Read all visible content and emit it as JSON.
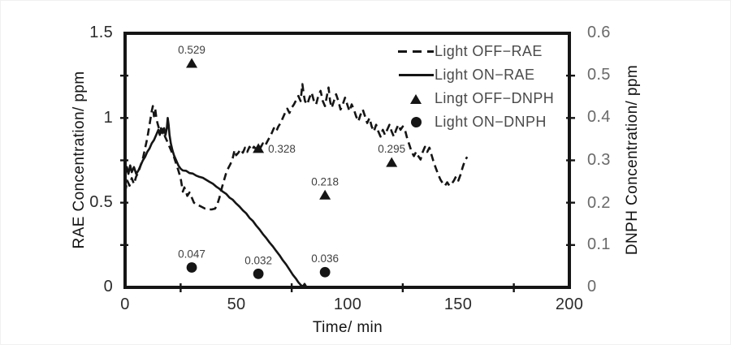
{
  "figure": {
    "x_axis": {
      "title": "Time/ min",
      "tick_labels": [
        "0",
        "50",
        "100",
        "150",
        "200"
      ],
      "tick_values": [
        0,
        50,
        100,
        150,
        200
      ],
      "minor_ticks": [
        25,
        75,
        125,
        175
      ],
      "range": [
        0,
        200
      ]
    },
    "left_axis": {
      "title": "RAE Concentration/ ppm",
      "tick_labels": [
        "1.5",
        "1",
        "0.5",
        "0"
      ],
      "tick_values": [
        1.5,
        1,
        0.5,
        0
      ],
      "minor_ticks": [
        0.25,
        0.5,
        0.75,
        1,
        1.25
      ],
      "range": [
        0,
        1.5
      ]
    },
    "right_axis": {
      "title": "DNPH Concentration/ ppm",
      "tick_labels": [
        "0.6",
        "0.5",
        "0.4",
        "0.3",
        "0.2",
        "0.1",
        "0"
      ],
      "tick_values": [
        0.6,
        0.5,
        0.4,
        0.3,
        0.2,
        0.1,
        0
      ],
      "minor_ticks": [
        0.1,
        0.2,
        0.3,
        0.4,
        0.5
      ],
      "range": [
        0,
        0.6
      ]
    },
    "colors": {
      "line": "#151515",
      "marker": "#151515",
      "point_label": "#404040",
      "tick_label_left": "#2b2b2b",
      "tick_label_right": "#6a6a6a"
    }
  },
  "chart_data": {
    "type": "line",
    "title": "",
    "xlabel": "Time/ min",
    "ylabel_left": "RAE Concentration/ ppm",
    "ylabel_right": "DNPH Concentration/ ppm",
    "x_range": [
      0,
      200
    ],
    "y_left_range": [
      0,
      1.5
    ],
    "y_right_range": [
      0,
      0.6
    ],
    "grid": false,
    "legend_position": "top-right-inside",
    "series": [
      {
        "name": "Light OFF−RAE",
        "type": "line",
        "line_style": "dashed",
        "axis": "left",
        "points": [
          [
            0,
            0.56
          ],
          [
            1,
            0.63
          ],
          [
            2,
            0.6
          ],
          [
            3,
            0.645
          ],
          [
            4,
            0.61
          ],
          [
            5,
            0.655
          ],
          [
            6,
            0.68
          ],
          [
            7,
            0.72
          ],
          [
            8,
            0.76
          ],
          [
            9,
            0.82
          ],
          [
            10,
            0.88
          ],
          [
            11,
            0.96
          ],
          [
            12,
            1.04
          ],
          [
            12.5,
            1.07
          ],
          [
            13,
            1.01
          ],
          [
            13.6,
            1.05
          ],
          [
            14.2,
            0.99
          ],
          [
            15,
            0.95
          ],
          [
            16,
            0.91
          ],
          [
            17,
            0.935
          ],
          [
            18,
            0.89
          ],
          [
            19,
            0.86
          ],
          [
            20,
            0.83
          ],
          [
            21,
            0.8
          ],
          [
            22,
            0.77
          ],
          [
            23,
            0.73
          ],
          [
            24,
            0.69
          ],
          [
            25,
            0.645
          ],
          [
            26,
            0.565
          ],
          [
            26.7,
            0.59
          ],
          [
            27.4,
            0.565
          ],
          [
            28,
            0.54
          ],
          [
            29,
            0.56
          ],
          [
            30,
            0.53
          ],
          [
            31,
            0.5
          ],
          [
            32,
            0.49
          ],
          [
            33,
            0.485
          ],
          [
            34.5,
            0.475
          ],
          [
            36,
            0.465
          ],
          [
            37.5,
            0.46
          ],
          [
            39,
            0.46
          ],
          [
            40.5,
            0.465
          ],
          [
            41.5,
            0.49
          ],
          [
            42.5,
            0.53
          ],
          [
            43.5,
            0.585
          ],
          [
            44.5,
            0.63
          ],
          [
            45.5,
            0.675
          ],
          [
            46.5,
            0.705
          ],
          [
            47.5,
            0.73
          ],
          [
            48.5,
            0.765
          ],
          [
            49.3,
            0.81
          ],
          [
            50,
            0.78
          ],
          [
            51,
            0.795
          ],
          [
            52,
            0.815
          ],
          [
            53,
            0.795
          ],
          [
            54,
            0.825
          ],
          [
            55,
            0.8
          ],
          [
            56,
            0.83
          ],
          [
            57,
            0.81
          ],
          [
            58,
            0.83
          ],
          [
            59,
            0.815
          ],
          [
            60,
            0.84
          ],
          [
            61,
            0.825
          ],
          [
            62,
            0.85
          ],
          [
            63,
            0.835
          ],
          [
            64,
            0.86
          ],
          [
            65,
            0.885
          ],
          [
            66,
            0.91
          ],
          [
            67,
            0.94
          ],
          [
            68,
            0.92
          ],
          [
            69,
            0.95
          ],
          [
            70,
            0.97
          ],
          [
            71,
            1.0
          ],
          [
            72,
            1.03
          ],
          [
            73,
            1.055
          ],
          [
            74,
            1.03
          ],
          [
            75,
            1.06
          ],
          [
            76,
            1.08
          ],
          [
            77,
            1.105
          ],
          [
            78,
            1.13
          ],
          [
            79,
            1.1
          ],
          [
            79.8,
            1.2
          ],
          [
            80.4,
            1.14
          ],
          [
            81,
            1.1
          ],
          [
            82,
            1.08
          ],
          [
            83,
            1.12
          ],
          [
            84,
            1.15
          ],
          [
            85,
            1.1
          ],
          [
            86,
            1.08
          ],
          [
            87,
            1.13
          ],
          [
            88,
            1.16
          ],
          [
            89,
            1.1
          ],
          [
            90,
            1.07
          ],
          [
            91,
            1.14
          ],
          [
            91.6,
            1.18
          ],
          [
            92.3,
            1.1
          ],
          [
            93,
            1.06
          ],
          [
            94,
            1.1
          ],
          [
            95,
            1.14
          ],
          [
            96,
            1.1
          ],
          [
            97,
            1.05
          ],
          [
            98,
            1.08
          ],
          [
            99,
            1.12
          ],
          [
            100,
            1.08
          ],
          [
            101,
            1.04
          ],
          [
            102,
            1.08
          ],
          [
            103,
            1.05
          ],
          [
            104,
            1.01
          ],
          [
            105,
            0.98
          ],
          [
            106,
            1.02
          ],
          [
            107,
            1.05
          ],
          [
            108,
            1.01
          ],
          [
            109,
            0.97
          ],
          [
            110,
            1.0
          ],
          [
            111,
            0.95
          ],
          [
            112,
            0.92
          ],
          [
            113,
            0.96
          ],
          [
            114,
            0.92
          ],
          [
            115,
            0.89
          ],
          [
            116,
            0.93
          ],
          [
            117,
            0.9
          ],
          [
            118,
            0.93
          ],
          [
            119,
            0.96
          ],
          [
            120,
            0.92
          ],
          [
            121,
            0.89
          ],
          [
            122,
            0.93
          ],
          [
            123,
            0.96
          ],
          [
            124,
            0.93
          ],
          [
            125,
            0.95
          ],
          [
            126,
            0.93
          ],
          [
            127,
            0.88
          ],
          [
            128,
            0.84
          ],
          [
            129,
            0.8
          ],
          [
            130,
            0.775
          ],
          [
            131,
            0.8
          ],
          [
            132,
            0.775
          ],
          [
            133,
            0.755
          ],
          [
            134,
            0.8
          ],
          [
            135,
            0.83
          ],
          [
            136,
            0.8
          ],
          [
            137,
            0.825
          ],
          [
            138,
            0.78
          ],
          [
            139,
            0.735
          ],
          [
            140,
            0.7
          ],
          [
            141,
            0.665
          ],
          [
            142,
            0.635
          ],
          [
            143,
            0.615
          ],
          [
            144,
            0.6
          ],
          [
            145,
            0.62
          ],
          [
            146,
            0.6
          ],
          [
            147,
            0.61
          ],
          [
            148,
            0.63
          ],
          [
            149,
            0.655
          ],
          [
            150,
            0.63
          ],
          [
            151,
            0.665
          ],
          [
            152,
            0.71
          ],
          [
            153,
            0.75
          ],
          [
            154,
            0.77
          ]
        ]
      },
      {
        "name": "Light ON−RAE",
        "type": "line",
        "line_style": "solid",
        "axis": "left",
        "points": [
          [
            0,
            0.66
          ],
          [
            0.8,
            0.71
          ],
          [
            1.5,
            0.67
          ],
          [
            2.3,
            0.72
          ],
          [
            3,
            0.68
          ],
          [
            4,
            0.71
          ],
          [
            5,
            0.67
          ],
          [
            6,
            0.69
          ],
          [
            7,
            0.72
          ],
          [
            8,
            0.75
          ],
          [
            9,
            0.77
          ],
          [
            10,
            0.8
          ],
          [
            11,
            0.82
          ],
          [
            12,
            0.85
          ],
          [
            13,
            0.87
          ],
          [
            14,
            0.9
          ],
          [
            15,
            0.93
          ],
          [
            15.6,
            0.9
          ],
          [
            16.2,
            0.94
          ],
          [
            17,
            0.91
          ],
          [
            17.6,
            0.94
          ],
          [
            18.2,
            0.9
          ],
          [
            18.8,
            0.94
          ],
          [
            19.2,
            1.0
          ],
          [
            19.6,
            0.96
          ],
          [
            20,
            0.9
          ],
          [
            20.6,
            0.85
          ],
          [
            21.3,
            0.81
          ],
          [
            22,
            0.78
          ],
          [
            23,
            0.75
          ],
          [
            24,
            0.72
          ],
          [
            25,
            0.7
          ],
          [
            26,
            0.69
          ],
          [
            27.5,
            0.688
          ],
          [
            29,
            0.675
          ],
          [
            30.5,
            0.672
          ],
          [
            32,
            0.66
          ],
          [
            33.5,
            0.652
          ],
          [
            35,
            0.647
          ],
          [
            36.5,
            0.635
          ],
          [
            38,
            0.623
          ],
          [
            39.5,
            0.612
          ],
          [
            41,
            0.595
          ],
          [
            42.5,
            0.582
          ],
          [
            44,
            0.565
          ],
          [
            45.5,
            0.552
          ],
          [
            47,
            0.53
          ],
          [
            48.5,
            0.517
          ],
          [
            50,
            0.495
          ],
          [
            51.5,
            0.477
          ],
          [
            53,
            0.455
          ],
          [
            54.5,
            0.437
          ],
          [
            56,
            0.41
          ],
          [
            57.5,
            0.392
          ],
          [
            59,
            0.365
          ],
          [
            60.5,
            0.342
          ],
          [
            62,
            0.315
          ],
          [
            63.5,
            0.292
          ],
          [
            65,
            0.265
          ],
          [
            66.5,
            0.242
          ],
          [
            68,
            0.215
          ],
          [
            69.5,
            0.19
          ],
          [
            71,
            0.16
          ],
          [
            72.5,
            0.135
          ],
          [
            74,
            0.105
          ],
          [
            75.5,
            0.075
          ],
          [
            77,
            0.05
          ],
          [
            78,
            0.03
          ],
          [
            79,
            0.015
          ],
          [
            80,
            0.005
          ],
          [
            80.8,
            0.02
          ],
          [
            81.5,
            0.005
          ],
          [
            82.3,
            0
          ]
        ]
      },
      {
        "name": "Lingt OFF−DNPH",
        "type": "scatter",
        "marker": "triangle",
        "axis": "right",
        "points": [
          {
            "x": 30,
            "y": 0.529,
            "label": "0.529",
            "label_pos": "top"
          },
          {
            "x": 60,
            "y": 0.328,
            "label": "0.328",
            "label_pos": "right"
          },
          {
            "x": 90,
            "y": 0.218,
            "label": "0.218",
            "label_pos": "top"
          },
          {
            "x": 120,
            "y": 0.295,
            "label": "0.295",
            "label_pos": "top"
          }
        ]
      },
      {
        "name": "Light ON−DNPH",
        "type": "scatter",
        "marker": "circle",
        "axis": "right",
        "points": [
          {
            "x": 30,
            "y": 0.047,
            "label": "0.047",
            "label_pos": "top"
          },
          {
            "x": 60,
            "y": 0.032,
            "label": "0.032",
            "label_pos": "top"
          },
          {
            "x": 90,
            "y": 0.036,
            "label": "0.036",
            "label_pos": "top"
          }
        ]
      }
    ]
  }
}
